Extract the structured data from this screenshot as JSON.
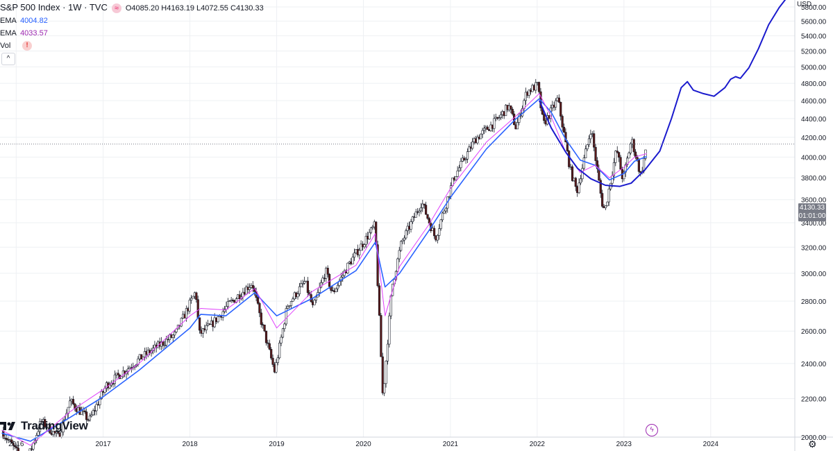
{
  "header": {
    "symbol_title": "S&P 500 Index · 1W · TVC",
    "open": "O4085.20",
    "high": "H4163.19",
    "low": "L4072.55",
    "close": "C4130.33"
  },
  "indicators": [
    {
      "name": "EMA",
      "value": "4004.82",
      "color": "#2962ff"
    },
    {
      "name": "EMA",
      "value": "4033.57",
      "color": "#9c27b0"
    },
    {
      "name": "Vol",
      "value": "!"
    }
  ],
  "collapse_label": "^",
  "logo_text": "TradingView",
  "currency": "USD",
  "price_label": {
    "price": "4130.33",
    "countdown": "01:01:00"
  },
  "colors": {
    "up_candle": "#ffffff",
    "down_candle": "#5b1a1a",
    "wick": "#131722",
    "ema_fast": "#2962ff",
    "ema_slow": "#e040fb",
    "projection": "#1a1acd",
    "grid": "#eef0f3"
  },
  "chart_data": {
    "type": "line",
    "title": "S&P 500 Index · 1W · TVC",
    "y_scale": "log",
    "ylim": [
      2000,
      5900
    ],
    "xlim": [
      "2015-10-25",
      "2024-12-20"
    ],
    "y_ticks": [
      2000,
      2200,
      2400,
      2600,
      2800,
      3000,
      3200,
      3400,
      3600,
      3800,
      4000,
      4200,
      4400,
      4600,
      4800,
      5000,
      5200,
      5400,
      5600,
      5800
    ],
    "y_tick_labels": [
      "2000.00",
      "2200.00",
      "2400.00",
      "2600.00",
      "2800.00",
      "3000.00",
      "3200.00",
      "3400.00",
      "3600.00",
      "3800.00",
      "4000.00",
      "4200.00",
      "4400.00",
      "4600.00",
      "4800.00",
      "5000.00",
      "5200.00",
      "5400.00",
      "5600.00",
      "5800.00"
    ],
    "x_ticks": [
      {
        "date": "2016-01-01",
        "label": "2016"
      },
      {
        "date": "2017-01-01",
        "label": "2017"
      },
      {
        "date": "2018-01-01",
        "label": "2018"
      },
      {
        "date": "2019-01-01",
        "label": "2019"
      },
      {
        "date": "2020-01-01",
        "label": "2020"
      },
      {
        "date": "2021-01-01",
        "label": "2021"
      },
      {
        "date": "2022-01-01",
        "label": "2022"
      },
      {
        "date": "2023-01-01",
        "label": "2023"
      },
      {
        "date": "2024-01-01",
        "label": "2024"
      }
    ],
    "grid": true,
    "last_price": 4130.33,
    "price_path": [
      [
        "2015-11-01",
        2030
      ],
      [
        "2016-02-10",
        1870
      ],
      [
        "2016-04-15",
        2080
      ],
      [
        "2016-06-27",
        2000
      ],
      [
        "2016-08-15",
        2185
      ],
      [
        "2016-11-04",
        2085
      ],
      [
        "2017-01-15",
        2275
      ],
      [
        "2017-06-15",
        2440
      ],
      [
        "2017-11-01",
        2580
      ],
      [
        "2018-01-26",
        2870
      ],
      [
        "2018-02-09",
        2580
      ],
      [
        "2018-04-01",
        2640
      ],
      [
        "2018-06-15",
        2780
      ],
      [
        "2018-09-20",
        2930
      ],
      [
        "2018-10-25",
        2680
      ],
      [
        "2018-12-24",
        2350
      ],
      [
        "2019-02-15",
        2770
      ],
      [
        "2019-04-30",
        2940
      ],
      [
        "2019-06-03",
        2750
      ],
      [
        "2019-07-26",
        3020
      ],
      [
        "2019-08-23",
        2850
      ],
      [
        "2019-11-01",
        3070
      ],
      [
        "2020-02-19",
        3380
      ],
      [
        "2020-03-23",
        2200
      ],
      [
        "2020-04-30",
        2900
      ],
      [
        "2020-06-08",
        3230
      ],
      [
        "2020-09-02",
        3580
      ],
      [
        "2020-10-30",
        3270
      ],
      [
        "2021-01-15",
        3800
      ],
      [
        "2021-04-15",
        4180
      ],
      [
        "2021-07-15",
        4380
      ],
      [
        "2021-09-03",
        4540
      ],
      [
        "2021-10-04",
        4300
      ],
      [
        "2021-11-18",
        4700
      ],
      [
        "2022-01-03",
        4780
      ],
      [
        "2022-01-27",
        4330
      ],
      [
        "2022-03-29",
        4620
      ],
      [
        "2022-05-20",
        3880
      ],
      [
        "2022-06-17",
        3670
      ],
      [
        "2022-08-16",
        4300
      ],
      [
        "2022-09-30",
        3580
      ],
      [
        "2022-10-13",
        3500
      ],
      [
        "2022-12-01",
        4080
      ],
      [
        "2022-12-28",
        3780
      ],
      [
        "2023-02-02",
        4180
      ],
      [
        "2023-03-13",
        3820
      ],
      [
        "2023-04-07",
        4130
      ]
    ],
    "series": [
      {
        "name": "EMA",
        "value": 4004.82,
        "x": [
          "2015-11-01",
          "2016-03-01",
          "2016-08-15",
          "2017-01-01",
          "2017-06-01",
          "2018-01-01",
          "2018-02-15",
          "2018-06-01",
          "2018-10-01",
          "2019-01-01",
          "2019-06-01",
          "2019-12-01",
          "2020-02-20",
          "2020-04-01",
          "2020-06-01",
          "2020-10-01",
          "2021-01-01",
          "2021-06-01",
          "2021-10-01",
          "2022-01-10",
          "2022-03-01",
          "2022-05-01",
          "2022-07-01",
          "2022-09-01",
          "2022-11-01",
          "2023-01-01",
          "2023-02-15",
          "2023-04-07"
        ],
        "y": [
          2020,
          1980,
          2100,
          2210,
          2360,
          2620,
          2710,
          2700,
          2860,
          2700,
          2820,
          3020,
          3240,
          2900,
          3000,
          3330,
          3620,
          4080,
          4390,
          4620,
          4470,
          4180,
          3970,
          3920,
          3780,
          3840,
          3960,
          4005
        ]
      },
      {
        "name": "EMA",
        "value": 4033.57,
        "x": [
          "2015-11-01",
          "2016-03-01",
          "2016-08-15",
          "2017-01-01",
          "2017-06-01",
          "2018-01-01",
          "2018-02-15",
          "2018-06-01",
          "2018-10-01",
          "2019-01-01",
          "2019-06-01",
          "2019-12-01",
          "2020-02-20",
          "2020-04-01",
          "2020-06-01",
          "2020-10-01",
          "2021-01-01",
          "2021-06-01",
          "2021-10-01",
          "2022-01-10",
          "2022-03-01",
          "2022-05-01",
          "2022-07-01",
          "2022-09-01",
          "2022-11-01",
          "2023-01-01",
          "2023-02-15",
          "2023-04-07"
        ],
        "y": [
          2035,
          1960,
          2130,
          2250,
          2400,
          2700,
          2750,
          2740,
          2890,
          2620,
          2870,
          3060,
          3310,
          2700,
          3050,
          3380,
          3700,
          4150,
          4420,
          4680,
          4420,
          4050,
          3850,
          3920,
          3800,
          3900,
          4000,
          4034
        ]
      },
      {
        "name": "",
        "x": [
          "2022-01-10",
          "2022-03-01",
          "2022-05-01",
          "2022-06-20",
          "2022-08-15",
          "2022-10-15",
          "2022-12-15",
          "2023-02-01",
          "2023-04-01",
          "2023-06-01",
          "2023-07-20",
          "2023-08-30",
          "2023-09-25",
          "2023-10-20",
          "2023-12-01",
          "2024-01-15",
          "2024-03-01",
          "2024-03-25",
          "2024-04-15",
          "2024-05-05",
          "2024-06-10",
          "2024-07-20",
          "2024-09-01",
          "2024-10-15",
          "2024-11-20"
        ],
        "y": [
          4600,
          4300,
          4050,
          3890,
          3790,
          3730,
          3720,
          3750,
          3880,
          4060,
          4400,
          4750,
          4820,
          4720,
          4680,
          4650,
          4750,
          4850,
          4880,
          4860,
          4990,
          5230,
          5550,
          5790,
          5950
        ]
      }
    ]
  }
}
